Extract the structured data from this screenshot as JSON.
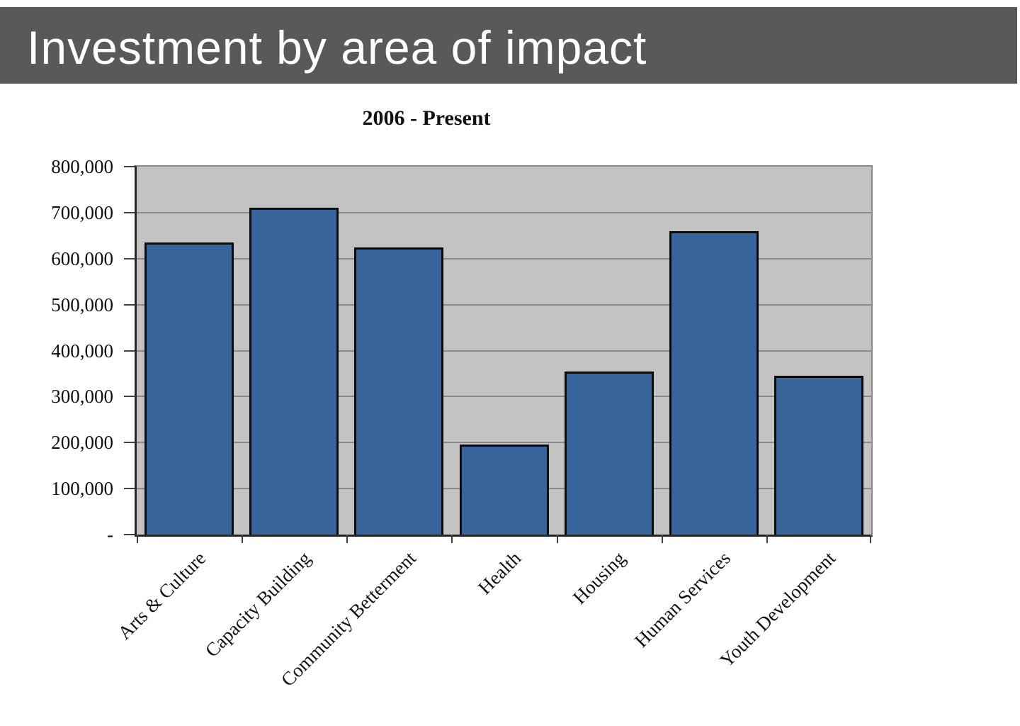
{
  "header": {
    "title": "Investment by area of impact",
    "bg_color": "#595959",
    "text_color": "#ffffff"
  },
  "chart_data": {
    "type": "bar",
    "title": "2006 - Present",
    "categories": [
      "Arts & Culture",
      "Capacity Building",
      "Community Betterment",
      "Health",
      "Housing",
      "Human Services",
      "Youth Development"
    ],
    "values": [
      635000,
      710000,
      625000,
      195000,
      355000,
      660000,
      345000
    ],
    "y_ticks": [
      "800,000",
      "700,000",
      "600,000",
      "500,000",
      "400,000",
      "300,000",
      "200,000",
      "100,000",
      "-"
    ],
    "ylim": [
      0,
      800000
    ],
    "y_step": 100000,
    "grid": true,
    "legend_position": "none",
    "x_label_rotation_deg": -45,
    "colors": {
      "bar_fill": "#38659B",
      "bar_border": "#0d0d0d",
      "plot_bg": "#C3C3C3",
      "gridline": "#8A8A8A",
      "axis": "#262626"
    }
  }
}
